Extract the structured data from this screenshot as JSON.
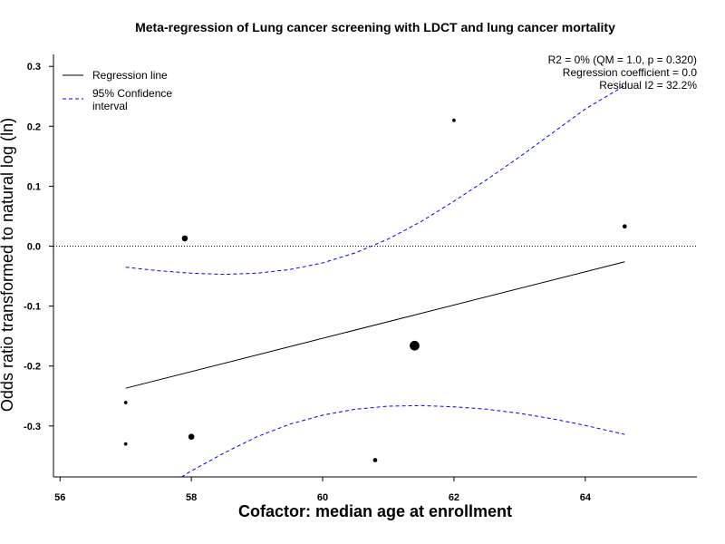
{
  "chart_data": {
    "type": "scatter",
    "title": "Meta-regression of  Lung cancer screening with LDCT and lung cancer mortality",
    "xlabel": "Cofactor:  median age at enrollment",
    "ylabel": "Odds ratio transformed to natural log (ln)",
    "xlim": [
      55.9,
      65.7
    ],
    "ylim": [
      -0.385,
      0.32
    ],
    "xticks": [
      56,
      58,
      60,
      62,
      64
    ],
    "yticks": [
      -0.3,
      -0.2,
      -0.1,
      0.0,
      0.1,
      0.2,
      0.3
    ],
    "xtick_labels": [
      "56",
      "58",
      "60",
      "62",
      "64"
    ],
    "ytick_labels": [
      "-0.3",
      "-0.2",
      "-0.1",
      "0.0",
      "0.1",
      "0.2",
      "0.3"
    ],
    "reference_line_y": 0.0,
    "points": [
      {
        "x": 57.0,
        "y": -0.261,
        "weight": 1
      },
      {
        "x": 57.0,
        "y": -0.33,
        "weight": 1
      },
      {
        "x": 57.9,
        "y": 0.013,
        "weight": 3
      },
      {
        "x": 58.0,
        "y": -0.318,
        "weight": 3
      },
      {
        "x": 60.8,
        "y": -0.357,
        "weight": 1.5
      },
      {
        "x": 61.4,
        "y": -0.166,
        "weight": 8
      },
      {
        "x": 62.0,
        "y": 0.21,
        "weight": 1
      },
      {
        "x": 64.6,
        "y": 0.033,
        "weight": 1.5
      }
    ],
    "regression_line": {
      "x": [
        57.0,
        64.6
      ],
      "y": [
        -0.237,
        -0.026
      ]
    },
    "ci_upper": {
      "x": [
        57.0,
        57.5,
        58.0,
        58.5,
        59.0,
        59.5,
        60.0,
        60.5,
        61.0,
        61.5,
        62.0,
        62.5,
        63.0,
        63.5,
        64.0,
        64.6
      ],
      "y": [
        -0.035,
        -0.041,
        -0.045,
        -0.047,
        -0.045,
        -0.039,
        -0.028,
        -0.011,
        0.012,
        0.041,
        0.075,
        0.111,
        0.149,
        0.189,
        0.229,
        0.268
      ]
    },
    "ci_lower": {
      "x": [
        57.85,
        58.0,
        58.5,
        59.0,
        59.5,
        60.0,
        60.5,
        61.0,
        61.5,
        62.0,
        62.5,
        63.0,
        63.5,
        64.0,
        64.6
      ],
      "y": [
        -0.385,
        -0.375,
        -0.345,
        -0.318,
        -0.297,
        -0.282,
        -0.272,
        -0.267,
        -0.266,
        -0.268,
        -0.272,
        -0.279,
        -0.288,
        -0.299,
        -0.314
      ]
    },
    "legend": {
      "position": "top-left",
      "entries": [
        {
          "label": "Regression line",
          "style": "solid",
          "color": "#000000"
        },
        {
          "label": "95% Confidence\ninterval",
          "style": "dashed",
          "color": "#0000ff"
        }
      ]
    },
    "annotations": [
      "R2 = 0% (QM = 1.0, p = 0.320)",
      "Regression coefficient = 0.0",
      "Residual I2 = 32.2%"
    ],
    "colors": {
      "points": "#000000",
      "regression": "#000000",
      "ci": "#0000ff",
      "reference": "#000000"
    }
  }
}
